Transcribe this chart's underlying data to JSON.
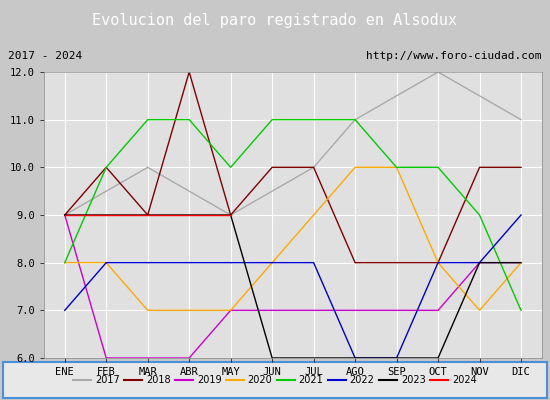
{
  "title": "Evolucion del paro registrado en Alsodux",
  "subtitle_left": "2017 - 2024",
  "subtitle_right": "http://www.foro-ciudad.com",
  "xlabel_months": [
    "ENE",
    "FEB",
    "MAR",
    "ABR",
    "MAY",
    "JUN",
    "JUL",
    "AGO",
    "SEP",
    "OCT",
    "NOV",
    "DIC"
  ],
  "ylim": [
    6.0,
    12.0
  ],
  "yticks": [
    6.0,
    7.0,
    8.0,
    9.0,
    10.0,
    11.0,
    12.0
  ],
  "series": {
    "2017": {
      "color": "#aaaaaa",
      "data": [
        9.0,
        9.5,
        10.0,
        9.5,
        9.0,
        9.5,
        10.0,
        11.0,
        11.5,
        12.0,
        11.5,
        11.0
      ]
    },
    "2018": {
      "color": "#800000",
      "data": [
        9.0,
        10.0,
        9.0,
        12.0,
        9.0,
        10.0,
        10.0,
        8.0,
        8.0,
        8.0,
        10.0,
        10.0
      ]
    },
    "2019": {
      "color": "#cc00cc",
      "data": [
        9.0,
        6.0,
        6.0,
        6.0,
        7.0,
        7.0,
        7.0,
        7.0,
        7.0,
        7.0,
        8.0,
        8.0
      ]
    },
    "2020": {
      "color": "#ffaa00",
      "data": [
        8.0,
        8.0,
        7.0,
        7.0,
        7.0,
        8.0,
        9.0,
        10.0,
        10.0,
        8.0,
        7.0,
        8.0
      ]
    },
    "2021": {
      "color": "#00cc00",
      "data": [
        8.0,
        10.0,
        11.0,
        11.0,
        10.0,
        11.0,
        11.0,
        11.0,
        10.0,
        10.0,
        9.0,
        7.0
      ]
    },
    "2022": {
      "color": "#0000cc",
      "data": [
        7.0,
        8.0,
        8.0,
        8.0,
        8.0,
        8.0,
        8.0,
        6.0,
        6.0,
        8.0,
        8.0,
        9.0
      ]
    },
    "2023": {
      "color": "#000000",
      "data": [
        9.0,
        9.0,
        9.0,
        9.0,
        9.0,
        6.0,
        6.0,
        6.0,
        6.0,
        6.0,
        8.0,
        8.0
      ]
    },
    "2024": {
      "color": "#ff0000",
      "data": [
        9.0,
        9.0,
        9.0,
        9.0,
        9.0,
        null,
        null,
        null,
        null,
        null,
        null,
        null
      ]
    }
  },
  "title_bg_color": "#4a90d9",
  "title_font_color": "#ffffff",
  "subtitle_bg_color": "#d8d8d8",
  "plot_bg_color": "#e0e0e0",
  "grid_color": "#ffffff",
  "fig_bg_color": "#c8c8c8",
  "legend_bg_color": "#e8e8e8",
  "legend_border_color": "#4a90d9"
}
